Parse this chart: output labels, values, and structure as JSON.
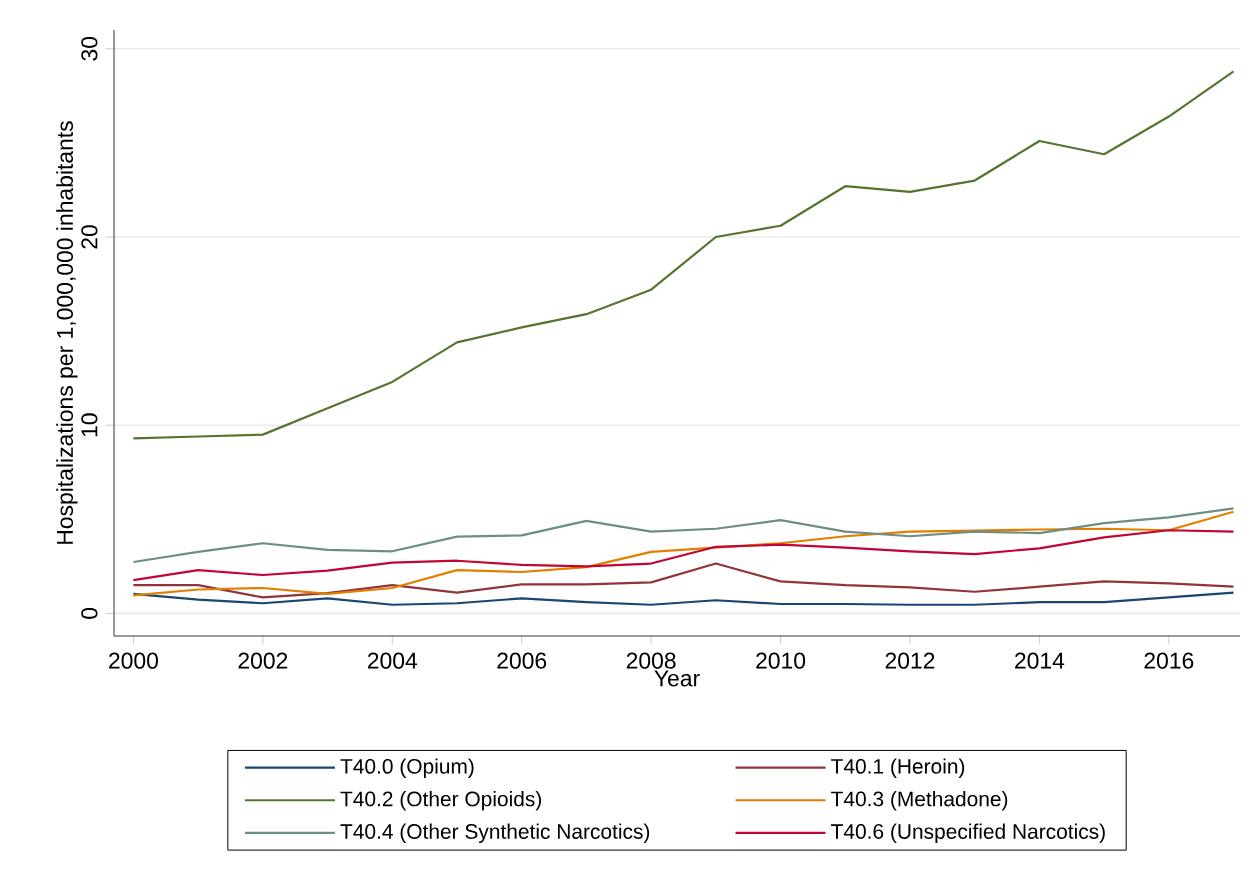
{
  "chart_data": {
    "type": "line",
    "xlabel": "Year",
    "ylabel": "Hospitalizations per 1,000,000 inhabitants",
    "x": [
      2000,
      2001,
      2002,
      2003,
      2004,
      2005,
      2006,
      2007,
      2008,
      2009,
      2010,
      2011,
      2012,
      2013,
      2014,
      2015,
      2016,
      2017
    ],
    "series": [
      {
        "name": "T40.0 (Opium)",
        "color": "#1a476f",
        "values": [
          1.04,
          0.73,
          0.54,
          0.8,
          0.46,
          0.54,
          0.8,
          0.6,
          0.46,
          0.7,
          0.5,
          0.5,
          0.46,
          0.46,
          0.6,
          0.6,
          0.85,
          1.1
        ]
      },
      {
        "name": "T40.1 (Heroin)",
        "color": "#90353b",
        "values": [
          1.5,
          1.5,
          0.85,
          1.08,
          1.5,
          1.1,
          1.54,
          1.54,
          1.65,
          2.65,
          1.7,
          1.5,
          1.38,
          1.15,
          1.42,
          1.7,
          1.6,
          1.42
        ]
      },
      {
        "name": "T40.2 (Other Opioids)",
        "color": "#55752f",
        "values": [
          9.3,
          9.4,
          9.5,
          10.9,
          12.3,
          14.4,
          15.2,
          15.9,
          17.2,
          20.0,
          20.6,
          22.7,
          22.4,
          23.0,
          25.1,
          24.4,
          26.4,
          28.8
        ]
      },
      {
        "name": "T40.3 (Methadone)",
        "color": "#e37e00",
        "values": [
          0.96,
          1.27,
          1.35,
          1.04,
          1.35,
          2.3,
          2.2,
          2.46,
          3.27,
          3.5,
          3.73,
          4.1,
          4.35,
          4.4,
          4.46,
          4.5,
          4.42,
          5.4
        ]
      },
      {
        "name": "T40.4 (Other Synthetic Narcotics)",
        "color": "#6e8e84",
        "values": [
          2.73,
          3.27,
          3.73,
          3.38,
          3.3,
          4.08,
          4.15,
          4.92,
          4.35,
          4.5,
          4.96,
          4.35,
          4.1,
          4.35,
          4.27,
          4.8,
          5.1,
          5.58
        ]
      },
      {
        "name": "T40.6 (Unspecified Narcotics)",
        "color": "#c10534",
        "values": [
          1.77,
          2.3,
          2.04,
          2.27,
          2.7,
          2.8,
          2.58,
          2.5,
          2.65,
          3.54,
          3.65,
          3.5,
          3.3,
          3.15,
          3.46,
          4.04,
          4.42,
          4.35
        ]
      }
    ],
    "xlim": [
      1999.7,
      2017.1
    ],
    "ylim": [
      -1.2,
      31
    ],
    "xticks": [
      2000,
      2002,
      2004,
      2006,
      2008,
      2010,
      2012,
      2014,
      2016
    ],
    "yticks": [
      0,
      10,
      20,
      30
    ],
    "grid": "y",
    "legend": "bottom",
    "line_style": "solid"
  }
}
